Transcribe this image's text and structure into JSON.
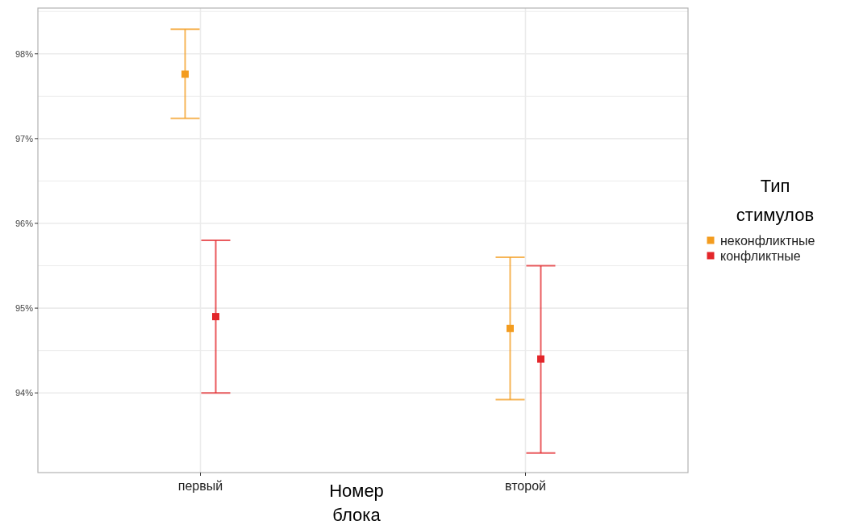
{
  "chart_data": {
    "type": "scatter",
    "xlabel": "Номер\nблока",
    "legend_title": "Тип\nстимулов",
    "categories": [
      "первый",
      "второй"
    ],
    "series": [
      {
        "name": "неконфликтные",
        "color": "#f39c1f",
        "values": [
          97.76,
          94.76
        ],
        "errors": [
          [
            97.24,
            98.29
          ],
          [
            93.92,
            95.6
          ]
        ]
      },
      {
        "name": "конфликтные",
        "color": "#e3262a",
        "values": [
          94.9,
          94.4
        ],
        "errors": [
          [
            94.0,
            95.8
          ],
          [
            93.29,
            95.5
          ]
        ]
      }
    ],
    "ylim": [
      93.06,
      98.54
    ],
    "yticks": [
      {
        "value": 94,
        "label": "94%"
      },
      {
        "value": 94.5,
        "label": null
      },
      {
        "value": 95,
        "label": "95%"
      },
      {
        "value": 95.5,
        "label": null
      },
      {
        "value": 96,
        "label": "96%"
      },
      {
        "value": 96.5,
        "label": null
      },
      {
        "value": 97,
        "label": "97%"
      },
      {
        "value": 97.5,
        "label": null
      },
      {
        "value": 98,
        "label": "98%"
      },
      {
        "value": 98.5,
        "label": null
      }
    ],
    "grid": true,
    "legend": "right",
    "marker": "square"
  }
}
